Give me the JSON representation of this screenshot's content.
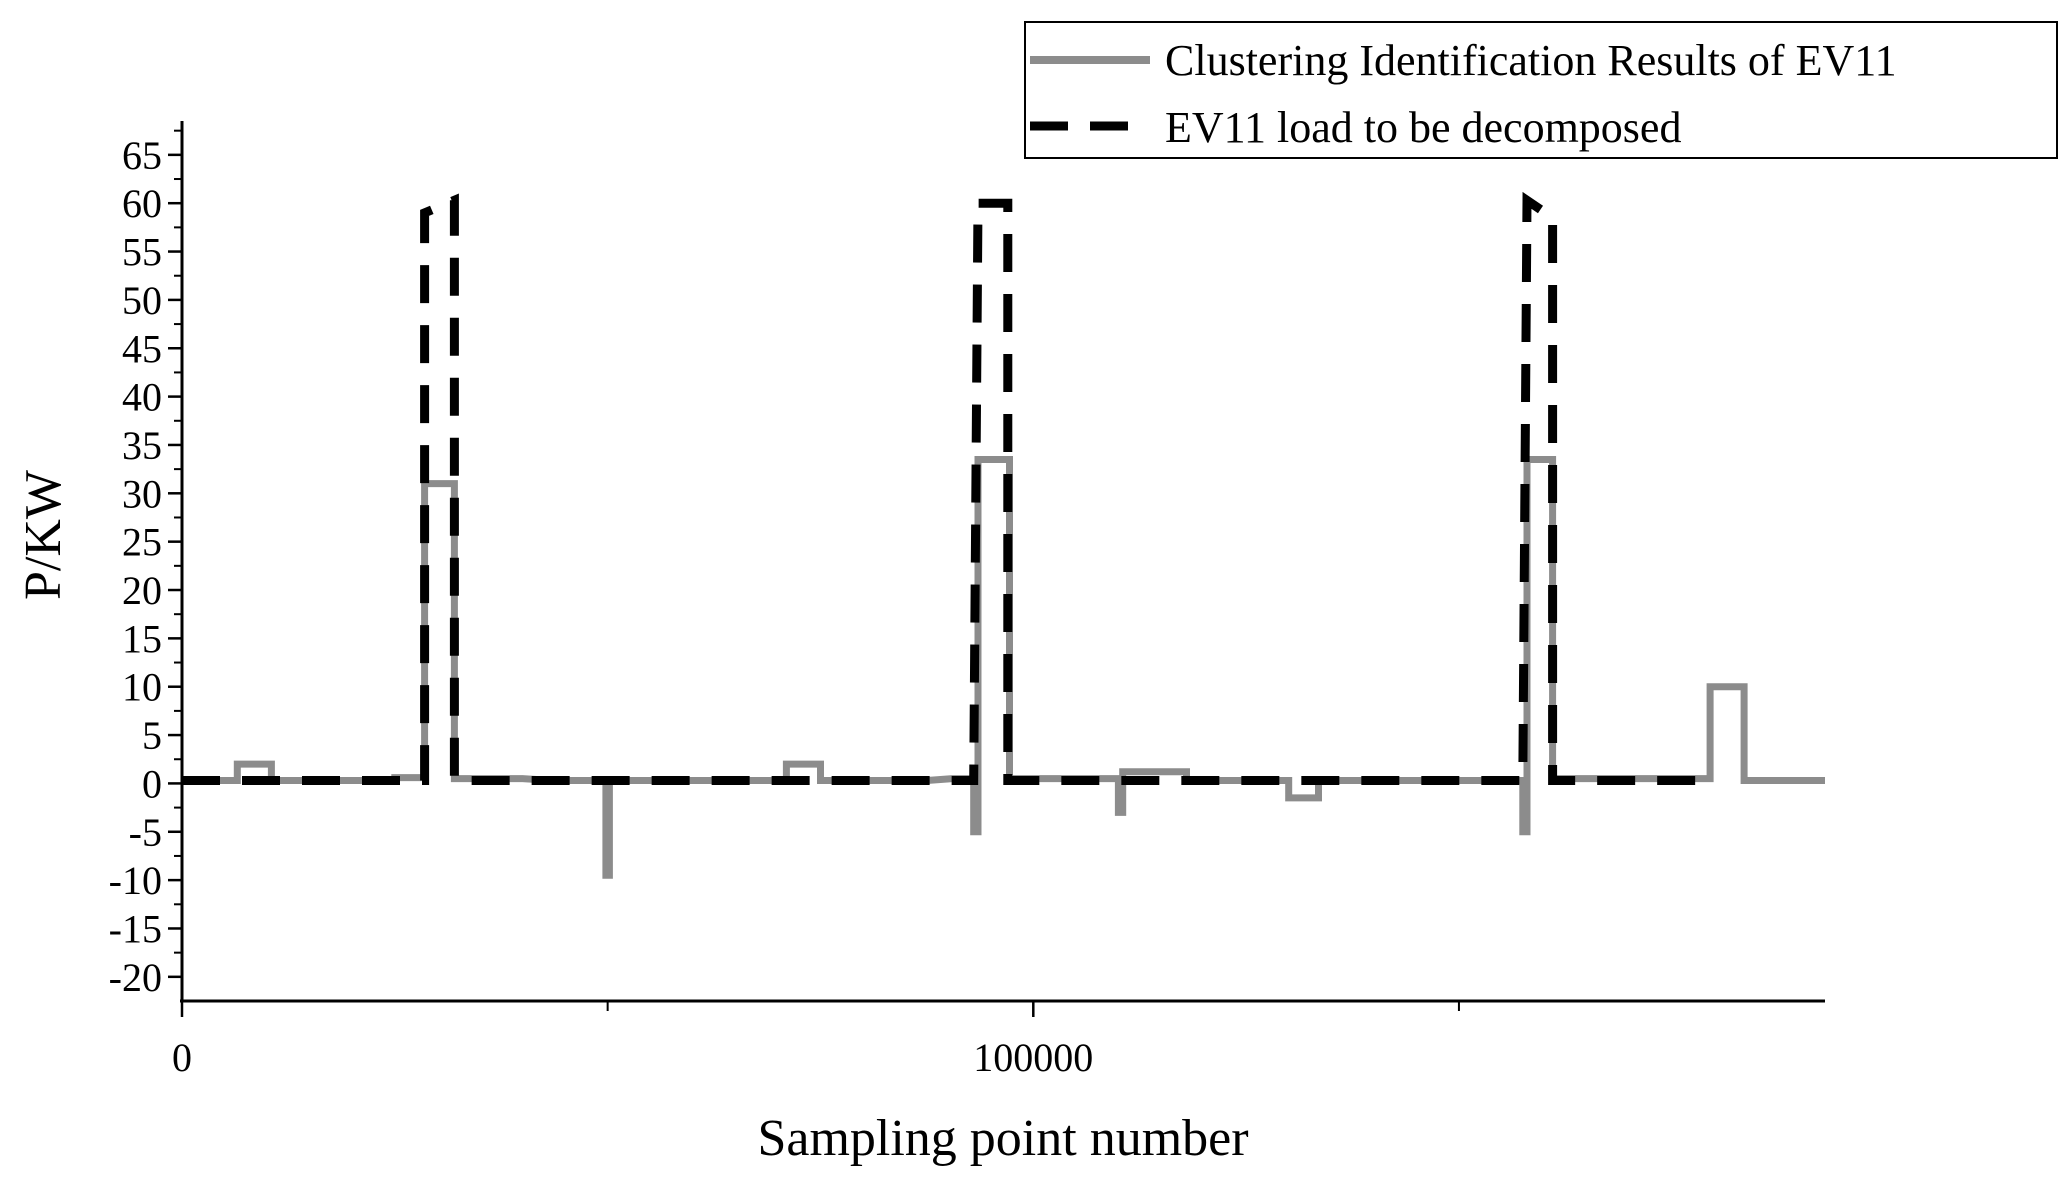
{
  "chart_data": {
    "type": "line",
    "title": "",
    "xlabel": "Sampling point number",
    "ylabel": "P/KW",
    "xlim": [
      0,
      193000
    ],
    "ylim": [
      -22.5,
      68.5
    ],
    "xticks": [
      {
        "value": 0,
        "label": "0"
      },
      {
        "value": 100000,
        "label": "100000"
      }
    ],
    "xticks_unlabeled": [
      50000,
      150000
    ],
    "yticks": [
      -20,
      -15,
      -10,
      -5,
      0,
      5,
      10,
      15,
      20,
      25,
      30,
      35,
      40,
      45,
      50,
      55,
      60,
      65
    ],
    "ytick_labels": [
      "-20",
      "-15",
      "-10",
      "-5",
      "0",
      "5",
      "10",
      "15",
      "20",
      "25",
      "30",
      "35",
      "40",
      "45",
      "50",
      "55",
      "60",
      "65"
    ],
    "grid": false,
    "legend_position": "top-right",
    "series": [
      {
        "name": "Clustering Identification Results of EV11",
        "color": "#8c8c8c",
        "style": "solid",
        "points": [
          [
            0,
            0.3
          ],
          [
            6500,
            0.3
          ],
          [
            6500,
            2
          ],
          [
            10500,
            2
          ],
          [
            10500,
            0.3
          ],
          [
            25000,
            0.3
          ],
          [
            25000,
            0.6
          ],
          [
            28500,
            0.6
          ],
          [
            28500,
            31
          ],
          [
            32000,
            31
          ],
          [
            32000,
            0.5
          ],
          [
            40000,
            0.5
          ],
          [
            43500,
            0.3
          ],
          [
            49800,
            0.3
          ],
          [
            49800,
            -9.5
          ],
          [
            50200,
            -9.5
          ],
          [
            50200,
            0.3
          ],
          [
            71000,
            0.3
          ],
          [
            71000,
            2
          ],
          [
            75000,
            2
          ],
          [
            75000,
            0.3
          ],
          [
            87500,
            0.3
          ],
          [
            90500,
            0.5
          ],
          [
            93000,
            0.5
          ],
          [
            93000,
            -5
          ],
          [
            93500,
            -5
          ],
          [
            93500,
            33.5
          ],
          [
            97200,
            33.5
          ],
          [
            97200,
            0.5
          ],
          [
            107000,
            0.5
          ],
          [
            110000,
            0.5
          ],
          [
            110000,
            -3
          ],
          [
            110500,
            -3
          ],
          [
            110500,
            1.2
          ],
          [
            118000,
            1.2
          ],
          [
            118000,
            0.3
          ],
          [
            130000,
            0.3
          ],
          [
            130000,
            -1.5
          ],
          [
            133500,
            -1.5
          ],
          [
            133500,
            0.3
          ],
          [
            153500,
            0.3
          ],
          [
            157500,
            0.3
          ],
          [
            157500,
            -5
          ],
          [
            158000,
            -5
          ],
          [
            158000,
            33.5
          ],
          [
            161000,
            33.5
          ],
          [
            161000,
            0.5
          ],
          [
            179500,
            0.5
          ],
          [
            179500,
            10
          ],
          [
            183500,
            10
          ],
          [
            183500,
            0.3
          ],
          [
            193000,
            0.3
          ]
        ]
      },
      {
        "name": "EV11 load to be decomposed",
        "color": "#000000",
        "style": "dashed",
        "points": [
          [
            0,
            0.3
          ],
          [
            28500,
            0.3
          ],
          [
            28500,
            59
          ],
          [
            32000,
            60.3
          ],
          [
            32000,
            0.3
          ],
          [
            93000,
            0.3
          ],
          [
            93500,
            60
          ],
          [
            97000,
            60
          ],
          [
            97000,
            0.3
          ],
          [
            157500,
            0.3
          ],
          [
            158000,
            60.3
          ],
          [
            161000,
            58.5
          ],
          [
            161000,
            0.3
          ],
          [
            179000,
            0.3
          ]
        ]
      }
    ]
  }
}
